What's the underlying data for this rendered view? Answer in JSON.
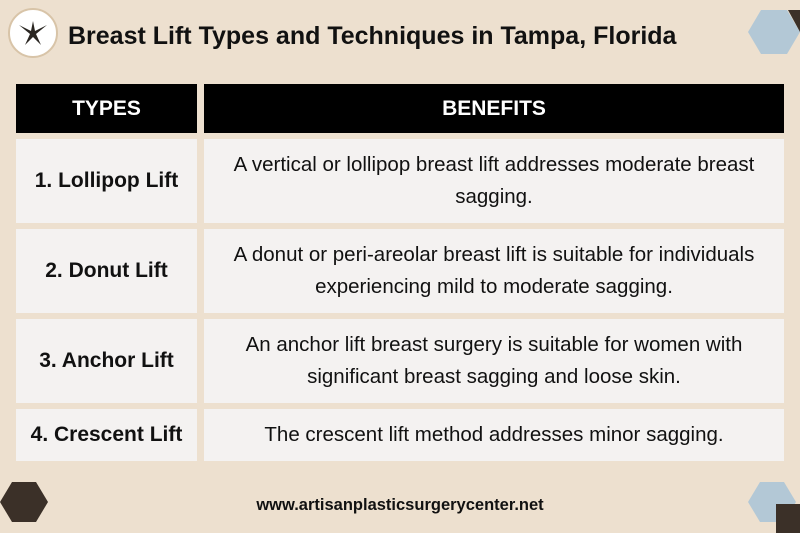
{
  "header": {
    "title": "Breast Lift Types and Techniques in Tampa, Florida"
  },
  "table": {
    "columns": [
      "TYPES",
      "BENEFITS"
    ],
    "rows": [
      {
        "type": "1. Lollipop Lift",
        "benefit": "A vertical or lollipop breast lift addresses moderate breast sagging."
      },
      {
        "type": "2. Donut Lift",
        "benefit": "A donut or peri-areolar breast lift is suitable for individuals experiencing mild to moderate sagging."
      },
      {
        "type": "3. Anchor Lift",
        "benefit": "An anchor lift breast surgery is suitable for women with significant breast sagging and loose skin."
      },
      {
        "type": "4. Crescent Lift",
        "benefit": "The crescent lift method addresses minor sagging."
      }
    ]
  },
  "footer": {
    "url": "www.artisanplasticsurgerycenter.net"
  },
  "colors": {
    "background": "#ede0cf",
    "header_fill": "#000000",
    "row_fill": "#f4f2f1",
    "hex_blue": "#b3c8d6",
    "hex_dark": "#3b3028"
  }
}
